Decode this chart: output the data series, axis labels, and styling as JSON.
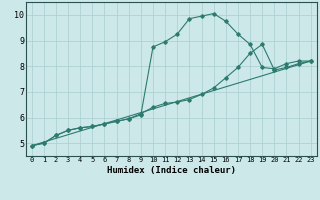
{
  "xlabel": "Humidex (Indice chaleur)",
  "ylabel": "",
  "bg_color": "#cce8e8",
  "line_color": "#2d7a6e",
  "grid_color": "#aacece",
  "xlim": [
    -0.5,
    23.5
  ],
  "ylim": [
    4.5,
    10.5
  ],
  "xticks": [
    0,
    1,
    2,
    3,
    4,
    5,
    6,
    7,
    8,
    9,
    10,
    11,
    12,
    13,
    14,
    15,
    16,
    17,
    18,
    19,
    20,
    21,
    22,
    23
  ],
  "yticks": [
    5,
    6,
    7,
    8,
    9,
    10
  ],
  "curve1_x": [
    0,
    1,
    2,
    3,
    4,
    5,
    6,
    7,
    8,
    9,
    10,
    11,
    12,
    13,
    14,
    15,
    16,
    17,
    18,
    19,
    20,
    21,
    22,
    23
  ],
  "curve1_y": [
    4.9,
    5.0,
    5.3,
    5.5,
    5.6,
    5.65,
    5.75,
    5.85,
    5.95,
    6.1,
    8.75,
    8.95,
    9.25,
    9.85,
    9.95,
    10.05,
    9.75,
    9.25,
    8.85,
    7.95,
    7.9,
    8.1,
    8.2,
    8.2
  ],
  "curve2_x": [
    0,
    1,
    2,
    3,
    4,
    5,
    6,
    7,
    8,
    9,
    10,
    11,
    12,
    13,
    14,
    15,
    16,
    17,
    18,
    19,
    20,
    21,
    22,
    23
  ],
  "curve2_y": [
    4.9,
    5.0,
    5.3,
    5.5,
    5.6,
    5.65,
    5.75,
    5.85,
    5.95,
    6.15,
    6.4,
    6.55,
    6.6,
    6.7,
    6.9,
    7.15,
    7.55,
    7.95,
    8.5,
    8.85,
    7.85,
    7.95,
    8.1,
    8.2
  ],
  "curve3_x": [
    0,
    23
  ],
  "curve3_y": [
    4.9,
    8.2
  ]
}
